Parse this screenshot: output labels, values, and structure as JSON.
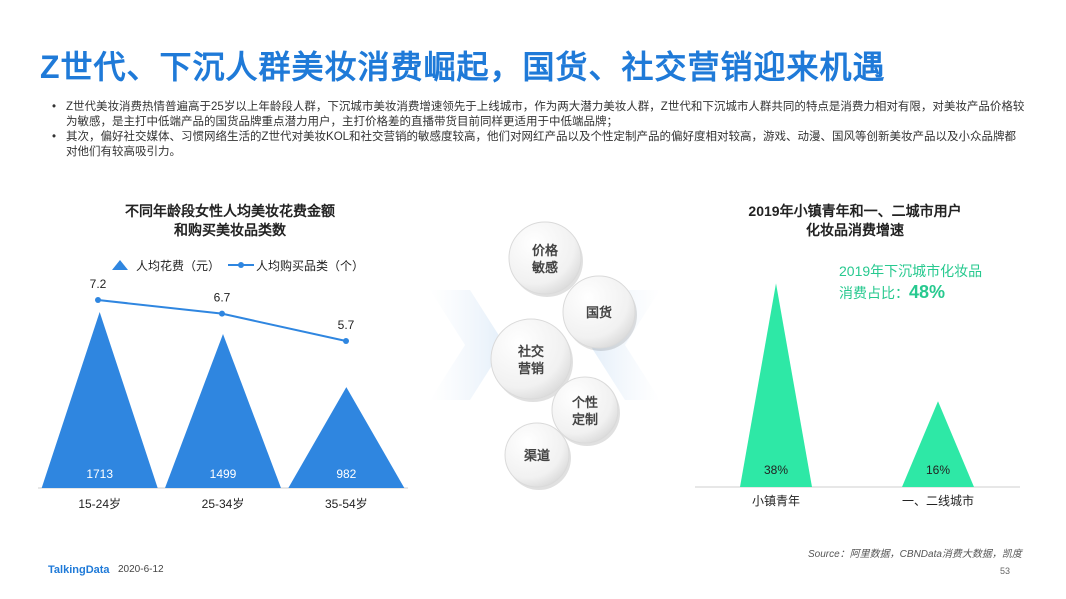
{
  "title": "Z世代、下沉人群美妆消费崛起，国货、社交营销迎来机遇",
  "bullets": [
    "Z世代美妆消费热情普遍高于25岁以上年龄段人群，下沉城市美妆消费增速领先于上线城市，作为两大潜力美妆人群，Z世代和下沉城市人群共同的特点是消费力相对有限，对美妆产品价格较为敏感，是主打中低端产品的国货品牌重点潜力用户，主打价格差的直播带货目前同样更适用于中低端品牌；",
    "其次，偏好社交媒体、习惯网络生活的Z世代对美妆KOL和社交营销的敏感度较高，他们对网红产品以及个性定制产品的偏好度相对较高，游戏、动漫、国风等创新美妆产品以及小众品牌都对他们有较高吸引力。"
  ],
  "left_chart": {
    "title_line1": "不同年龄段女性人均美妆花费金额",
    "title_line2": "和购买美妆品类数",
    "legend": [
      "人均花费（元）",
      "人均购买品类（个）"
    ],
    "colors": {
      "spend": "#2f86e0",
      "line": "#2f86e0"
    }
  },
  "right_chart": {
    "title_line1": "2019年小镇青年和一、二城市用户",
    "title_line2": "化妆品消费增速",
    "callout_text": "2019年下沉城市化妆品",
    "callout_text2": "消费占比：",
    "callout_value": "48%",
    "color": "#2ee8a6"
  },
  "bubbles": [
    {
      "line1": "价格",
      "line2": "敏感"
    },
    {
      "line1": "国货",
      "line2": ""
    },
    {
      "line1": "社交",
      "line2": "营销"
    },
    {
      "line1": "个性",
      "line2": "定制"
    },
    {
      "line1": "渠道",
      "line2": ""
    }
  ],
  "chart_data": [
    {
      "type": "bar",
      "categories": [
        "15-24岁",
        "25-34岁",
        "35-54岁"
      ],
      "series": [
        {
          "name": "人均花费（元）",
          "values": [
            1713,
            1499,
            982
          ]
        },
        {
          "name": "人均购买品类（个）",
          "values": [
            7.2,
            6.7,
            5.7
          ]
        }
      ],
      "title": "不同年龄段女性人均美妆花费金额和购买美妆品类数",
      "xlabel": "",
      "ylabel": "",
      "ylim": [
        0,
        1900
      ],
      "legend": "top-left"
    },
    {
      "type": "bar",
      "categories": [
        "小镇青年",
        "一、二线城市"
      ],
      "values": [
        38,
        16
      ],
      "value_labels": [
        "38%",
        "16%"
      ],
      "title": "2019年小镇青年和一、二城市用户化妆品消费增速",
      "ylim": [
        0,
        42
      ]
    }
  ],
  "source": "Source：阿里数据，CBNData消费大数据，凯度",
  "footer": {
    "logo": "TalkingData",
    "date": "2020-6-12",
    "page": "53"
  }
}
